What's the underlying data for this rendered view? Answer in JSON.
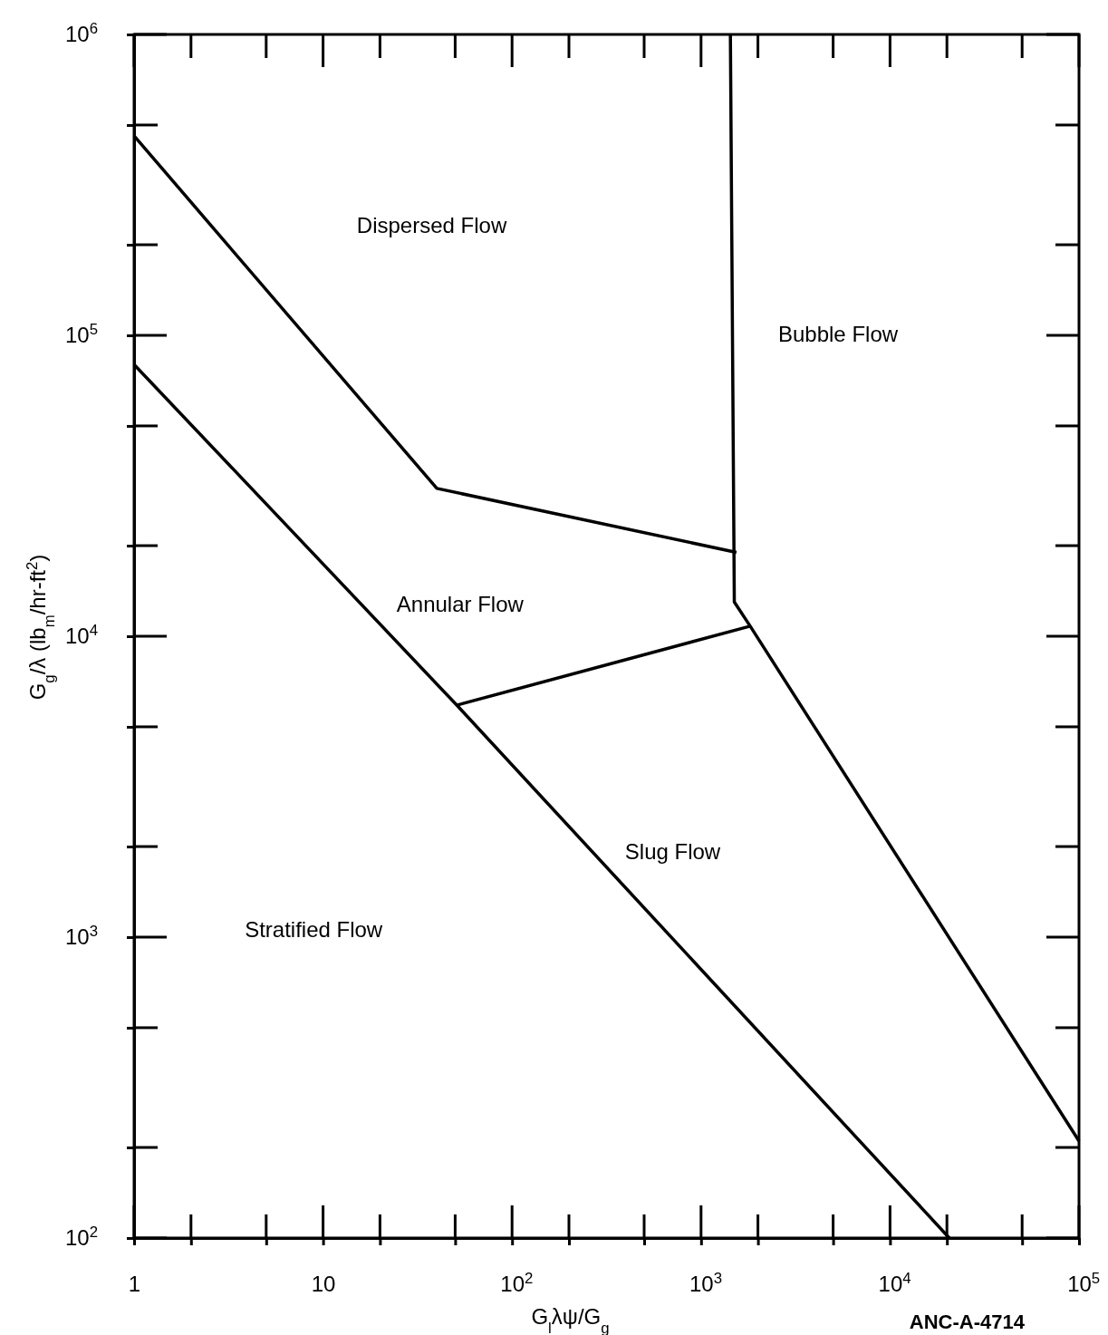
{
  "chart_data": {
    "type": "line",
    "xlabel": "G$_{l}$λψ/G$_{g}$",
    "ylabel": "G$_{g}$/λ (lb$_{m}$/hr-ft$^{2}$)",
    "log": "xy",
    "grid": false,
    "marker": "none",
    "line_style": "solid",
    "xlim": [
      1,
      100000
    ],
    "ylim": [
      100,
      1000000
    ],
    "xticks": [
      1,
      {
        "value": 2,
        "label": null
      },
      {
        "value": 5,
        "label": null
      },
      10,
      {
        "value": 20,
        "label": null
      },
      {
        "value": 50,
        "label": null
      },
      {
        "value": 100,
        "label": "10$^{2}$"
      },
      {
        "value": 200,
        "label": null
      },
      {
        "value": 500,
        "label": null
      },
      {
        "value": 1000,
        "label": "10$^{3}$"
      },
      {
        "value": 2000,
        "label": null
      },
      {
        "value": 5000,
        "label": null
      },
      {
        "value": 10000,
        "label": "10$^{4}$"
      },
      {
        "value": 20000,
        "label": null
      },
      {
        "value": 50000,
        "label": null
      },
      {
        "value": 100000,
        "label": "10$^{5}$"
      }
    ],
    "yticks": [
      {
        "value": 100,
        "label": "10$^{2}$"
      },
      {
        "value": 200,
        "label": null
      },
      {
        "value": 500,
        "label": null
      },
      {
        "value": 1000,
        "label": "10$^{3}$"
      },
      {
        "value": 2000,
        "label": null
      },
      {
        "value": 5000,
        "label": null
      },
      {
        "value": 10000,
        "label": "10$^{4}$"
      },
      {
        "value": 20000,
        "label": null
      },
      {
        "value": 50000,
        "label": null
      },
      {
        "value": 100000,
        "label": "10$^{5}$"
      },
      {
        "value": 200000,
        "label": null
      },
      {
        "value": 500000,
        "label": null
      },
      {
        "value": 1000000,
        "label": "10$^{6}$"
      }
    ],
    "series": [
      {
        "color": "#000000",
        "x": [
          1,
          40,
          1540
        ],
        "values": [
          460000,
          31000,
          19000
        ]
      },
      {
        "color": "#000000",
        "x": [
          1430,
          1500,
          1820,
          100000
        ],
        "values": [
          1000000,
          13000,
          10800,
          210
        ]
      },
      {
        "color": "#000000",
        "x": [
          51,
          1820
        ],
        "values": [
          5900,
          10800
        ]
      },
      {
        "color": "#000000",
        "x": [
          1,
          51,
          20600
        ],
        "values": [
          80000,
          5900,
          100
        ]
      }
    ],
    "annotations": [
      "Dispersed Flow",
      "Bubble Flow",
      "Annular Flow",
      "Slug Flow",
      "Stratified Flow",
      "ANC-A-4714"
    ]
  }
}
